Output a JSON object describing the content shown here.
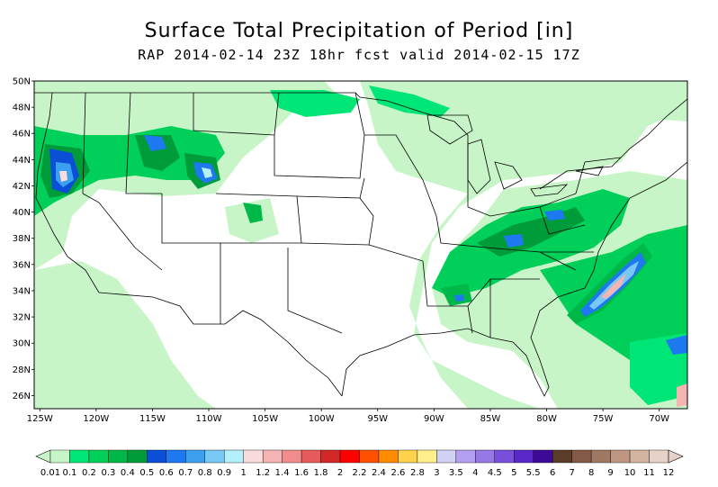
{
  "title": "Surface Total Precipitation of Period [in]",
  "subtitle": "RAP 2014-02-14 23Z 18hr fcst valid 2014-02-15 17Z",
  "lat_labels": [
    "50N",
    "48N",
    "46N",
    "44N",
    "42N",
    "40N",
    "38N",
    "36N",
    "34N",
    "32N",
    "30N",
    "28N",
    "26N"
  ],
  "lon_labels": [
    "125W",
    "120W",
    "115W",
    "110W",
    "105W",
    "100W",
    "95W",
    "90W",
    "85W",
    "80W",
    "75W",
    "70W"
  ],
  "colorbar": {
    "labels": [
      "0.01",
      "0.1",
      "0.2",
      "0.3",
      "0.4",
      "0.5",
      "0.6",
      "0.7",
      "0.8",
      "0.9",
      "1",
      "1.2",
      "1.4",
      "1.6",
      "1.8",
      "2",
      "2.2",
      "2.4",
      "2.6",
      "2.8",
      "3",
      "3.5",
      "4",
      "4.5",
      "5",
      "5.5",
      "6",
      "7",
      "8",
      "9",
      "10",
      "11",
      "12"
    ],
    "colors": [
      "#c8f5c8",
      "#00e676",
      "#00d05a",
      "#00b847",
      "#009c3a",
      "#0a4fd6",
      "#1e78f0",
      "#3ca0f0",
      "#78c8f5",
      "#b4f0fa",
      "#fadcdc",
      "#f5b4b4",
      "#f08c8c",
      "#e65a5a",
      "#d22828",
      "#ff0000",
      "#ff5000",
      "#ff8c00",
      "#ffd24b",
      "#fff08c",
      "#d2d2f5",
      "#b4a0f0",
      "#9678e6",
      "#7850dc",
      "#5a28c8",
      "#3c0a96",
      "#5a3c28",
      "#825a46",
      "#a07864",
      "#be9682",
      "#d2b4a0",
      "#e6d2c8"
    ]
  },
  "map": {
    "lat_range": [
      25,
      50
    ],
    "lon_range": [
      -125.5,
      -67.5
    ]
  }
}
